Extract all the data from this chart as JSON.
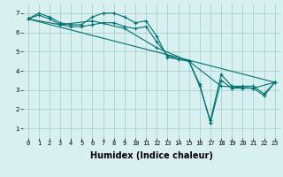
{
  "xlabel": "Humidex (Indice chaleur)",
  "ylabel": "",
  "xlim": [
    -0.5,
    23.5
  ],
  "ylim": [
    0.5,
    7.5
  ],
  "bg_color": "#d8f0f0",
  "line_color": "#007070",
  "grid_color": "#a0c8c8",
  "series": [
    {
      "x": [
        0,
        1,
        2,
        3,
        4,
        5,
        6,
        7,
        8,
        9,
        10,
        11,
        12,
        13,
        14,
        15,
        16,
        17,
        18,
        19,
        20,
        21,
        22,
        23
      ],
      "y": [
        6.7,
        7.0,
        6.8,
        6.5,
        6.4,
        6.4,
        6.8,
        7.0,
        7.0,
        6.8,
        6.5,
        6.6,
        5.8,
        4.7,
        4.6,
        4.5,
        3.2,
        1.4,
        3.8,
        3.2,
        3.2,
        3.2,
        2.8,
        3.4
      ],
      "marker": "+"
    },
    {
      "x": [
        0,
        1,
        2,
        3,
        4,
        5,
        6,
        7,
        8,
        9,
        10,
        11,
        12,
        13,
        14,
        15,
        16,
        17,
        18,
        19,
        20,
        21,
        22,
        23
      ],
      "y": [
        6.7,
        6.9,
        6.7,
        6.4,
        6.3,
        6.3,
        6.4,
        6.5,
        6.5,
        6.3,
        6.2,
        6.3,
        5.5,
        4.8,
        4.6,
        4.5,
        3.3,
        1.3,
        3.5,
        3.1,
        3.1,
        3.1,
        2.7,
        3.4
      ],
      "marker": "+"
    },
    {
      "x": [
        0,
        3,
        6,
        9,
        12,
        15,
        18,
        21,
        23
      ],
      "y": [
        6.7,
        6.4,
        6.6,
        6.2,
        5.2,
        4.5,
        3.2,
        3.1,
        3.4
      ],
      "marker": "+"
    },
    {
      "x": [
        0,
        23
      ],
      "y": [
        6.7,
        3.4
      ],
      "marker": null
    }
  ],
  "xticks": [
    0,
    1,
    2,
    3,
    4,
    5,
    6,
    7,
    8,
    9,
    10,
    11,
    12,
    13,
    14,
    15,
    16,
    17,
    18,
    19,
    20,
    21,
    22,
    23
  ],
  "yticks": [
    1,
    2,
    3,
    4,
    5,
    6,
    7
  ],
  "tick_fontsize": 5.0,
  "xlabel_fontsize": 7.0,
  "xlabel_fontweight": "bold"
}
